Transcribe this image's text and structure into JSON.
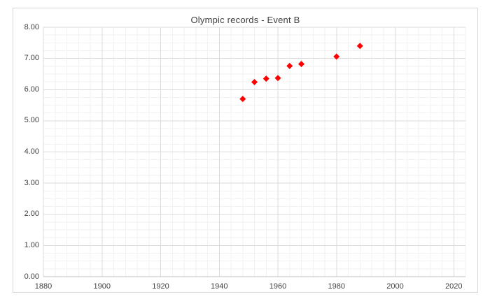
{
  "title": "Olympic records - Event B",
  "colors": {
    "marker": "#ff0000",
    "major_grid": "#dbdbdb",
    "minor_grid": "#f2f2f2",
    "axis_line": "#c0c0c0",
    "text": "#404040",
    "chart_border": "#d7d7d7",
    "background": "#ffffff"
  },
  "chart_data": {
    "type": "scatter",
    "title": "Olympic records - Event B",
    "xlabel": "",
    "ylabel": "",
    "xlim": [
      1880,
      2024
    ],
    "ylim": [
      0,
      8
    ],
    "x_major_unit": 20,
    "x_minor_unit": 4,
    "y_major_unit": 1,
    "y_minor_unit": 0.25,
    "x_tick_labels": [
      "1880",
      "1900",
      "1920",
      "1940",
      "1960",
      "1980",
      "2000",
      "2020"
    ],
    "y_tick_labels": [
      "0.00",
      "1.00",
      "2.00",
      "3.00",
      "4.00",
      "5.00",
      "6.00",
      "7.00",
      "8.00"
    ],
    "grid": "major+minor",
    "legend": "none",
    "marker": "diamond",
    "series": [
      {
        "name": "Event B",
        "x": [
          1948,
          1952,
          1956,
          1960,
          1964,
          1968,
          1980,
          1988
        ],
        "y": [
          5.7,
          6.24,
          6.35,
          6.37,
          6.76,
          6.82,
          7.06,
          7.4
        ]
      }
    ]
  }
}
